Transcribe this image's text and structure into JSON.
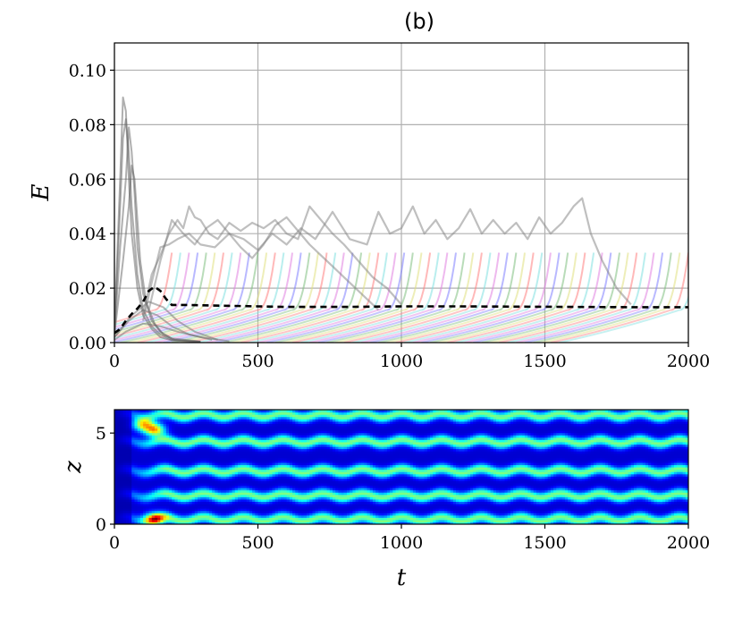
{
  "chart_data": [
    {
      "type": "line",
      "title": "(b)",
      "xlabel": "",
      "ylabel": "E",
      "xlim": [
        0,
        2000
      ],
      "ylim": [
        0,
        0.11
      ],
      "xticks": [
        0,
        500,
        1000,
        1500,
        2000
      ],
      "xtick_labels": [
        "0",
        "500",
        "1000",
        "1500",
        "2000"
      ],
      "yticks": [
        0,
        0.02,
        0.04,
        0.06,
        0.08,
        0.1
      ],
      "ytick_labels": [
        "0.00",
        "0.02",
        "0.04",
        "0.06",
        "0.08",
        "0.10"
      ],
      "grid": true,
      "legend": "none",
      "series": [
        {
          "style": "dashed-black",
          "color": "#000000",
          "x": [
            0,
            20,
            40,
            60,
            80,
            100,
            120,
            140,
            160,
            180,
            200,
            250,
            300,
            400,
            500,
            600,
            700,
            800,
            900,
            1000,
            1200,
            1400,
            1600,
            1800,
            2000
          ],
          "y": [
            0.0035,
            0.005,
            0.008,
            0.0105,
            0.0125,
            0.015,
            0.019,
            0.0205,
            0.019,
            0.016,
            0.0138,
            0.0138,
            0.0137,
            0.0135,
            0.0133,
            0.0131,
            0.0131,
            0.0131,
            0.0132,
            0.0133,
            0.0133,
            0.0132,
            0.0131,
            0.013,
            0.013
          ]
        },
        {
          "style": "gray-transient",
          "color": "#606060",
          "x": [
            0,
            20,
            30,
            40,
            50,
            60,
            80,
            100,
            130,
            160,
            200,
            300
          ],
          "y": [
            0.005,
            0.06,
            0.09,
            0.085,
            0.06,
            0.04,
            0.02,
            0.01,
            0.005,
            0.002,
            0.0008,
            0.0002
          ]
        },
        {
          "style": "gray-transient",
          "color": "#606060",
          "x": [
            0,
            20,
            30,
            40,
            50,
            60,
            80,
            100,
            130,
            160,
            200,
            300
          ],
          "y": [
            0.004,
            0.05,
            0.075,
            0.082,
            0.07,
            0.05,
            0.025,
            0.012,
            0.006,
            0.003,
            0.001,
            0.0003
          ]
        },
        {
          "style": "gray-transient",
          "color": "#606060",
          "x": [
            0,
            20,
            40,
            50,
            60,
            70,
            80,
            100,
            130,
            160,
            200,
            300
          ],
          "y": [
            0.003,
            0.035,
            0.06,
            0.079,
            0.07,
            0.055,
            0.035,
            0.018,
            0.008,
            0.004,
            0.0015,
            0.0004
          ]
        },
        {
          "style": "gray-transient",
          "color": "#606060",
          "x": [
            0,
            30,
            50,
            60,
            70,
            80,
            90,
            110,
            140,
            170,
            210,
            300
          ],
          "y": [
            0.003,
            0.03,
            0.05,
            0.065,
            0.06,
            0.045,
            0.03,
            0.015,
            0.007,
            0.003,
            0.001,
            0.0003
          ]
        },
        {
          "style": "gray-sustained",
          "color": "#808080",
          "x": [
            100,
            130,
            160,
            190,
            220,
            240,
            260,
            280,
            300,
            330,
            360,
            400,
            440,
            480,
            520,
            560,
            600,
            640,
            680,
            720,
            760,
            800,
            850,
            900,
            950,
            1000
          ],
          "y": [
            0.01,
            0.025,
            0.032,
            0.04,
            0.045,
            0.042,
            0.05,
            0.046,
            0.045,
            0.04,
            0.038,
            0.044,
            0.041,
            0.044,
            0.042,
            0.045,
            0.04,
            0.038,
            0.05,
            0.045,
            0.04,
            0.036,
            0.03,
            0.024,
            0.02,
            0.014
          ]
        },
        {
          "style": "gray-sustained",
          "color": "#808080",
          "x": [
            100,
            130,
            160,
            190,
            220,
            260,
            300,
            350,
            400,
            450,
            500,
            550,
            600,
            650,
            700,
            760,
            820,
            880,
            920,
            960,
            1000,
            1040,
            1080,
            1120,
            1160,
            1200,
            1240,
            1280,
            1320,
            1360,
            1400,
            1440,
            1480,
            1520,
            1560,
            1600,
            1630,
            1660,
            1700,
            1750,
            1800
          ],
          "y": [
            0.008,
            0.022,
            0.035,
            0.036,
            0.038,
            0.04,
            0.036,
            0.035,
            0.04,
            0.038,
            0.034,
            0.04,
            0.036,
            0.042,
            0.038,
            0.048,
            0.038,
            0.036,
            0.048,
            0.04,
            0.042,
            0.05,
            0.04,
            0.045,
            0.038,
            0.042,
            0.049,
            0.04,
            0.045,
            0.04,
            0.044,
            0.038,
            0.046,
            0.04,
            0.044,
            0.05,
            0.053,
            0.04,
            0.03,
            0.02,
            0.014
          ]
        },
        {
          "style": "gray-sustained",
          "color": "#808080",
          "x": [
            120,
            160,
            200,
            240,
            280,
            320,
            360,
            400,
            440,
            480,
            520,
            560,
            600,
            640,
            680,
            720,
            760,
            800,
            840,
            880,
            920
          ],
          "y": [
            0.012,
            0.03,
            0.045,
            0.04,
            0.036,
            0.042,
            0.045,
            0.04,
            0.035,
            0.031,
            0.036,
            0.043,
            0.046,
            0.041,
            0.036,
            0.032,
            0.028,
            0.024,
            0.02,
            0.016,
            0.012
          ]
        },
        {
          "style": "gray-transient",
          "color": "#707070",
          "x": [
            0,
            50,
            100,
            150,
            200,
            260,
            340
          ],
          "y": [
            0.002,
            0.008,
            0.012,
            0.01,
            0.006,
            0.003,
            0.001
          ]
        },
        {
          "style": "gray-transient",
          "color": "#707070",
          "x": [
            0,
            60,
            120,
            170,
            220,
            280,
            360
          ],
          "y": [
            0.002,
            0.01,
            0.015,
            0.013,
            0.008,
            0.004,
            0.001
          ]
        },
        {
          "style": "gray-transient",
          "color": "#707070",
          "x": [
            0,
            40,
            100,
            160,
            220,
            300,
            400
          ],
          "y": [
            0.001,
            0.004,
            0.007,
            0.006,
            0.004,
            0.002,
            0.0005
          ]
        }
      ],
      "colored_bursts": {
        "palette": [
          "#ff8080",
          "#80e0e0",
          "#e080e0",
          "#8080ff",
          "#80c080",
          "#e0e080"
        ],
        "start_times": [
          140,
          170,
          200,
          230,
          260,
          290,
          320,
          350,
          380,
          410,
          440,
          470,
          500,
          530,
          560,
          590,
          620,
          650,
          680,
          710,
          740,
          770,
          800,
          830,
          860,
          890,
          920,
          950,
          980,
          1010,
          1040,
          1070,
          1100,
          1130,
          1160,
          1190,
          1220,
          1250,
          1280,
          1310,
          1340,
          1370,
          1400,
          1430,
          1460,
          1490,
          1520,
          1550,
          1580,
          1610,
          1640,
          1670,
          1700,
          1730,
          1760,
          1790,
          1820,
          1850,
          1880,
          1910,
          1940,
          1970
        ],
        "rise_duration": 60,
        "peak": 0.033,
        "plateau": 0.012,
        "decay_duration": 420
      }
    },
    {
      "type": "heatmap",
      "xlabel": "t",
      "ylabel": "z",
      "xlim": [
        0,
        2000
      ],
      "ylim": [
        0,
        6.283
      ],
      "xticks": [
        0,
        500,
        1000,
        1500,
        2000
      ],
      "xtick_labels": [
        "0",
        "500",
        "1000",
        "1500",
        "2000"
      ],
      "yticks": [
        0,
        5
      ],
      "ytick_labels": [
        "0",
        "5"
      ],
      "colormap": "jet",
      "bands_z": [
        0.3,
        1.6,
        2.95,
        4.55,
        6.0
      ],
      "hot_spots": [
        {
          "t": 140,
          "z": 5.2,
          "level": 1.0
        },
        {
          "t": 100,
          "z": 5.5,
          "level": 0.85
        },
        {
          "t": 140,
          "z": 0.3,
          "level": 1.0
        }
      ]
    }
  ]
}
